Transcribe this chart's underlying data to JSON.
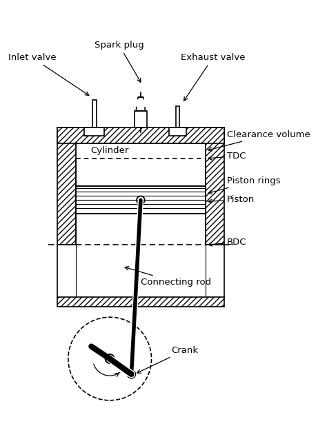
{
  "bg_color": "#ffffff",
  "line_color": "#000000",
  "hatch_color": "#000000",
  "figsize": [
    4.74,
    6.21
  ],
  "dpi": 100,
  "labels": {
    "inlet_valve": "Inlet valve",
    "spark_plug": "Spark plug",
    "exhaust_valve": "Exhaust valve",
    "clearance_volume": "Clearance volume",
    "cylinder": "Cylinder",
    "tdc": "TDC",
    "piston_rings": "Piston rings",
    "piston": "Piston",
    "bdc": "BDC",
    "connecting_rod": "Connecting rod",
    "crank": "Crank"
  }
}
